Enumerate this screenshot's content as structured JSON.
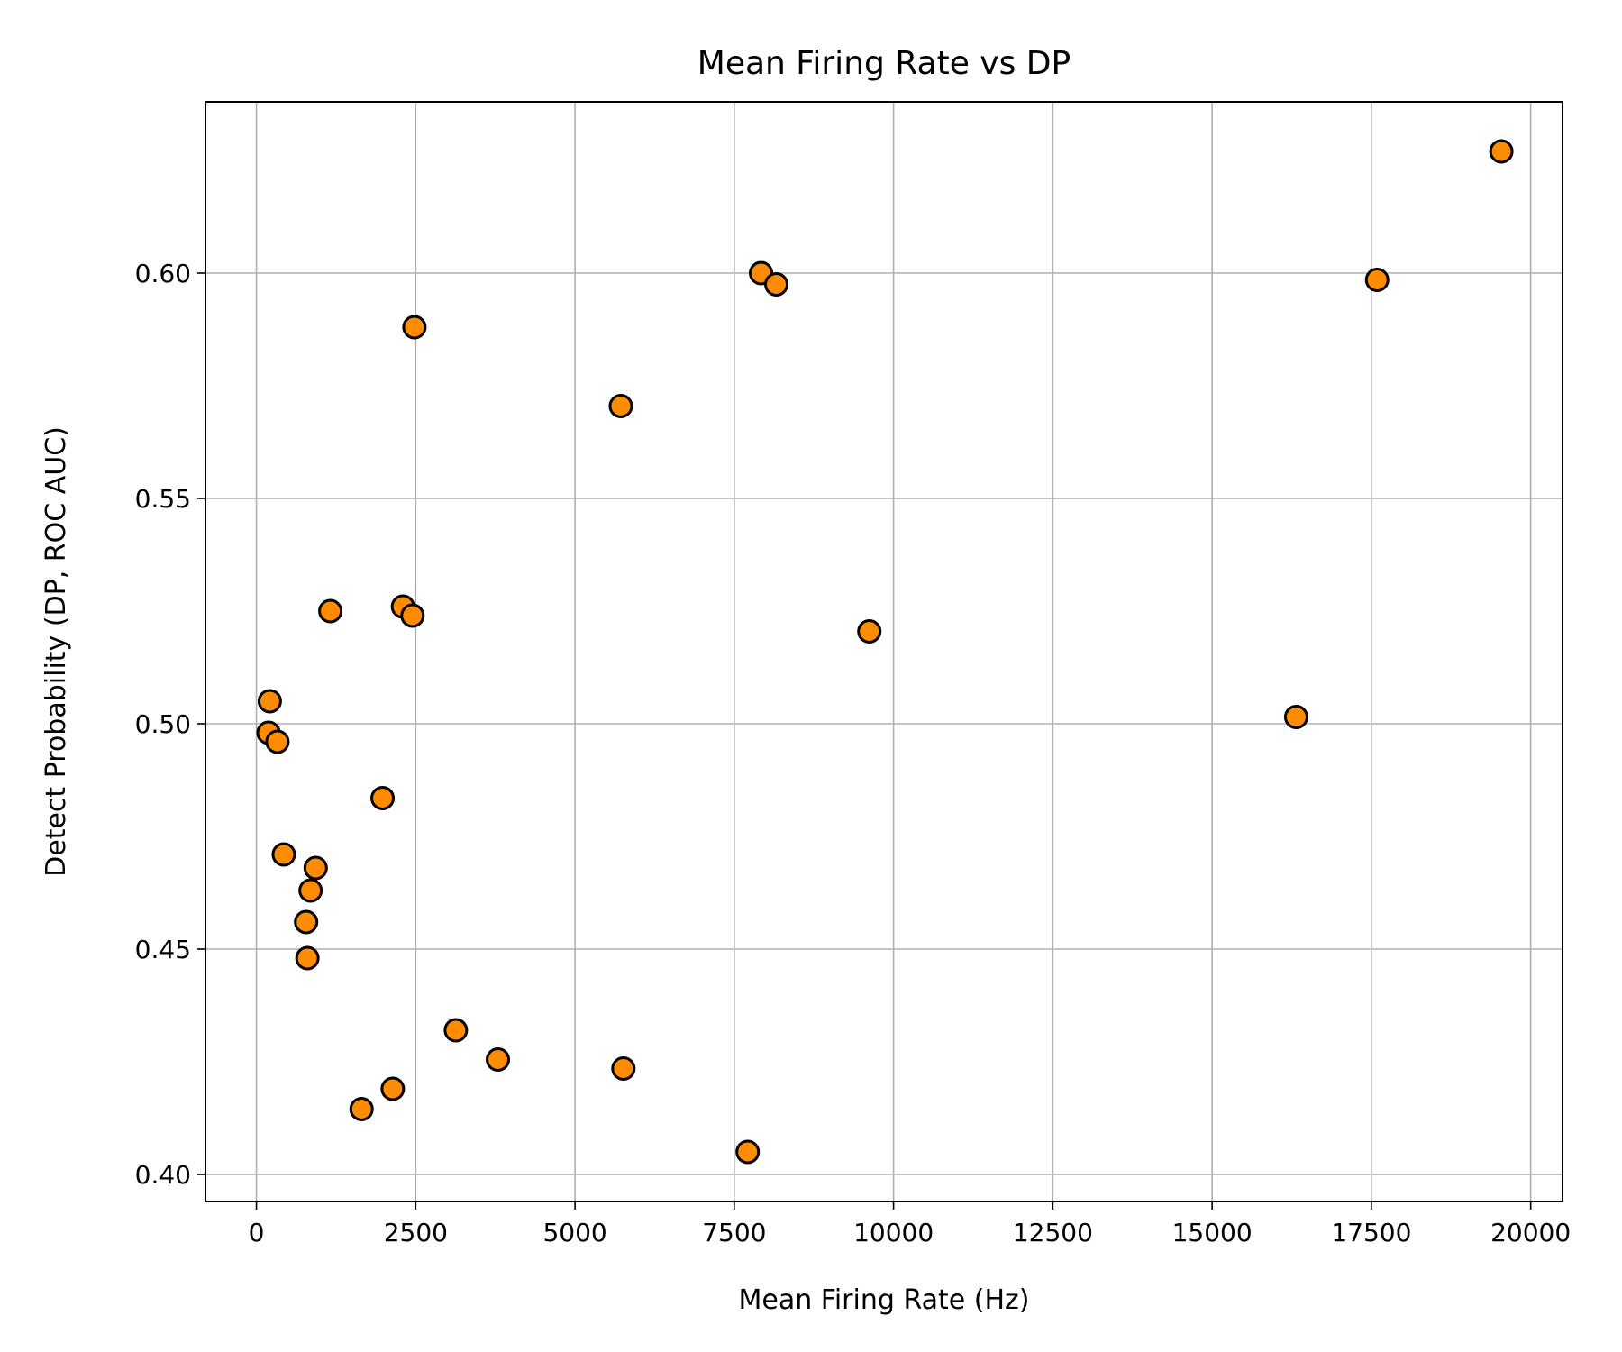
{
  "chart_data": {
    "type": "scatter",
    "title": "Mean Firing Rate vs DP",
    "xlabel": "Mean Firing Rate (Hz)",
    "ylabel": "Detect Probability (DP, ROC AUC)",
    "xlim": [
      -800,
      20500
    ],
    "ylim": [
      0.394,
      0.638
    ],
    "xticks": [
      0,
      2500,
      5000,
      7500,
      10000,
      12500,
      15000,
      17500,
      20000
    ],
    "xtick_labels": [
      "0",
      "2500",
      "5000",
      "7500",
      "10000",
      "12500",
      "15000",
      "17500",
      "20000"
    ],
    "yticks": [
      0.4,
      0.45,
      0.5,
      0.55,
      0.6
    ],
    "ytick_labels": [
      "0.40",
      "0.45",
      "0.50",
      "0.55",
      "0.60"
    ],
    "grid": true,
    "marker_color": "#ff8c00",
    "marker_edge_color": "#000000",
    "points": [
      {
        "x": 210,
        "y": 0.505
      },
      {
        "x": 190,
        "y": 0.498
      },
      {
        "x": 330,
        "y": 0.496
      },
      {
        "x": 430,
        "y": 0.471
      },
      {
        "x": 780,
        "y": 0.456
      },
      {
        "x": 800,
        "y": 0.448
      },
      {
        "x": 850,
        "y": 0.463
      },
      {
        "x": 930,
        "y": 0.468
      },
      {
        "x": 1160,
        "y": 0.525
      },
      {
        "x": 1650,
        "y": 0.4145
      },
      {
        "x": 1980,
        "y": 0.4835
      },
      {
        "x": 2140,
        "y": 0.419
      },
      {
        "x": 2300,
        "y": 0.526
      },
      {
        "x": 2450,
        "y": 0.524
      },
      {
        "x": 2480,
        "y": 0.588
      },
      {
        "x": 3130,
        "y": 0.432
      },
      {
        "x": 3790,
        "y": 0.4255
      },
      {
        "x": 5720,
        "y": 0.5705
      },
      {
        "x": 5760,
        "y": 0.4235
      },
      {
        "x": 7710,
        "y": 0.405
      },
      {
        "x": 7920,
        "y": 0.6
      },
      {
        "x": 8160,
        "y": 0.5975
      },
      {
        "x": 9620,
        "y": 0.5205
      },
      {
        "x": 16320,
        "y": 0.5015
      },
      {
        "x": 17590,
        "y": 0.5985
      },
      {
        "x": 19540,
        "y": 0.627
      }
    ]
  }
}
